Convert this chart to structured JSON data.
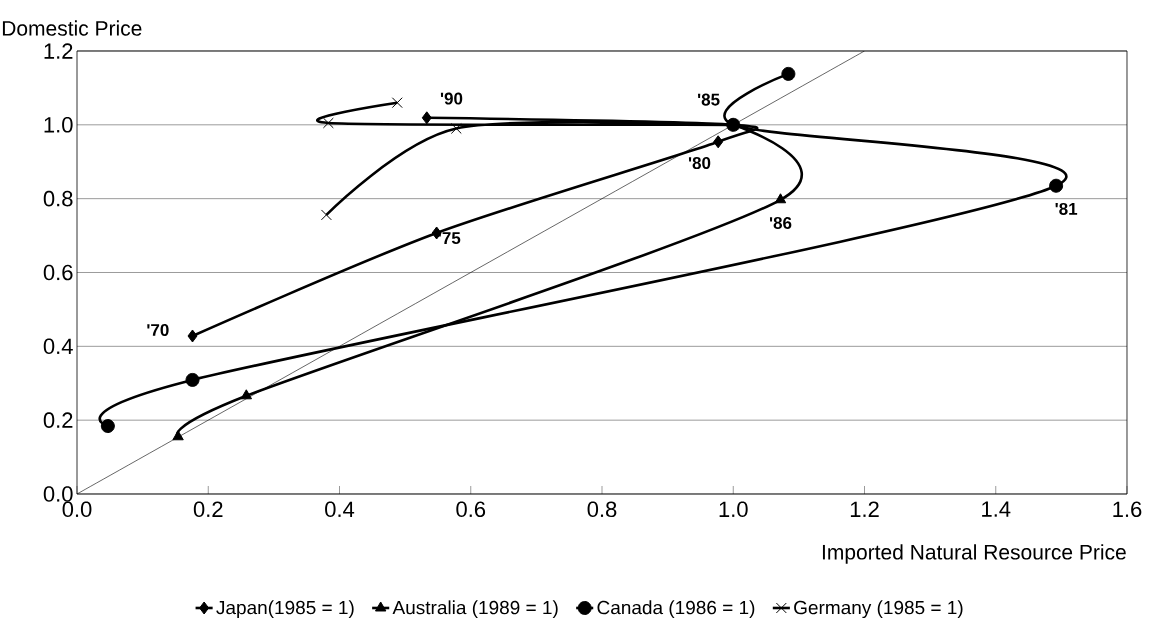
{
  "chart_data": {
    "type": "line",
    "xlabel": "Imported Natural Resource Price",
    "ylabel": "Domestic Price",
    "xlim": [
      0,
      1.6
    ],
    "ylim": [
      0,
      1.2
    ],
    "xticks": [
      {
        "value": 0,
        "label": "0.0"
      },
      {
        "value": 0.2,
        "label": "0.2"
      },
      {
        "value": 0.4,
        "label": "0.4"
      },
      {
        "value": 0.6,
        "label": "0.6"
      },
      {
        "value": 0.8,
        "label": "0.8"
      },
      {
        "value": 1.0,
        "label": "1.0"
      },
      {
        "value": 1.2,
        "label": "1.2"
      },
      {
        "value": 1.4,
        "label": "1.4"
      },
      {
        "value": 1.6,
        "label": "1.6"
      }
    ],
    "yticks": [
      {
        "value": 0,
        "label": "0.0"
      },
      {
        "value": 0.2,
        "label": "0.2"
      },
      {
        "value": 0.4,
        "label": "0.4"
      },
      {
        "value": 0.6,
        "label": "0.6"
      },
      {
        "value": 0.8,
        "label": "0.8"
      },
      {
        "value": 1.0,
        "label": "1.0"
      },
      {
        "value": 1.2,
        "label": "1.2"
      }
    ],
    "grid": "y",
    "legend": "bottom",
    "series": [
      {
        "name": "Japan(1985 = 1)",
        "color": "#000000",
        "marker": "diamond",
        "x": [
          0.176,
          0.548,
          0.977,
          1.0,
          0.533
        ],
        "values": [
          0.428,
          0.707,
          0.954,
          1.0,
          1.019
        ]
      },
      {
        "name": "Australia (1989 = 1)",
        "color": "#000000",
        "marker": "triangle",
        "x": [
          0.154,
          0.258,
          1.072,
          1.0
        ],
        "values": [
          0.155,
          0.266,
          0.797,
          1.0
        ]
      },
      {
        "name": "Canada (1986 = 1)",
        "color": "#000000",
        "marker": "circle",
        "x": [
          0.047,
          0.176,
          1.492,
          1.0,
          1.084
        ],
        "values": [
          0.184,
          0.309,
          0.835,
          1.0,
          1.138
        ]
      },
      {
        "name": "Germany (1985 = 1)",
        "color": "#000000",
        "marker": "cross",
        "x": [
          0.38,
          0.578,
          1.0,
          0.383,
          0.488
        ],
        "values": [
          0.756,
          0.99,
          1.0,
          1.005,
          1.06
        ]
      },
      {
        "color": "#000000",
        "marker": "none",
        "x": [
          0,
          1.2
        ],
        "values": [
          0,
          1.2
        ]
      }
    ],
    "annotations": [
      {
        "text": "'70",
        "x": 0.176,
        "y": 0.428
      },
      {
        "text": "'75",
        "x": 0.548,
        "y": 0.707
      },
      {
        "text": "'80",
        "x": 0.977,
        "y": 0.954
      },
      {
        "text": "'85",
        "x": 1.0,
        "y": 1.0
      },
      {
        "text": "'90",
        "x": 0.533,
        "y": 1.019
      },
      {
        "text": "'86",
        "x": 1.072,
        "y": 0.797
      },
      {
        "text": "'81",
        "x": 1.492,
        "y": 0.835
      }
    ]
  }
}
